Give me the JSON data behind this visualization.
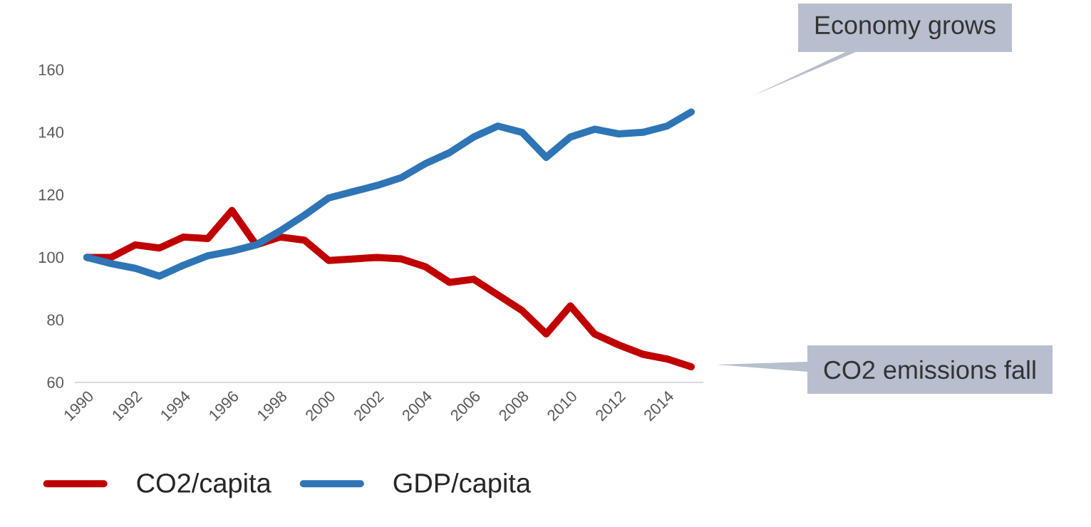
{
  "chart_data": {
    "type": "line",
    "x": [
      1990,
      1991,
      1992,
      1993,
      1994,
      1995,
      1996,
      1997,
      1998,
      1999,
      2000,
      2001,
      2002,
      2003,
      2004,
      2005,
      2006,
      2007,
      2008,
      2009,
      2010,
      2011,
      2012,
      2013,
      2014,
      2015
    ],
    "series": [
      {
        "name": "CO2/capita",
        "color": "#c00000",
        "values": [
          100,
          100,
          104,
          103,
          106.5,
          106,
          115,
          104,
          106.5,
          105.5,
          99,
          99.5,
          100,
          99.5,
          97,
          92,
          93,
          88,
          83,
          75.5,
          84.5,
          75.5,
          72,
          69,
          67.5,
          65
        ]
      },
      {
        "name": "GDP/capita",
        "color": "#2e75b6",
        "values": [
          100,
          98,
          96.5,
          94,
          97.5,
          100.5,
          102,
          104,
          108.5,
          113.5,
          119,
          121,
          123,
          125.5,
          130,
          133.5,
          138.5,
          142,
          140,
          132,
          138.5,
          141,
          139.5,
          140,
          142,
          146.5
        ]
      }
    ],
    "xlim": [
      1989.5,
      2015.5
    ],
    "xticks": [
      1990,
      1992,
      1994,
      1996,
      1998,
      2000,
      2002,
      2004,
      2006,
      2008,
      2010,
      2012,
      2014
    ],
    "ylim": [
      60,
      160
    ],
    "yticks": [
      60,
      80,
      100,
      120,
      140,
      160
    ],
    "legend": "bottom",
    "line_style": "solid",
    "annotations": [
      "Economy grows",
      "CO2 emissions fall"
    ]
  }
}
